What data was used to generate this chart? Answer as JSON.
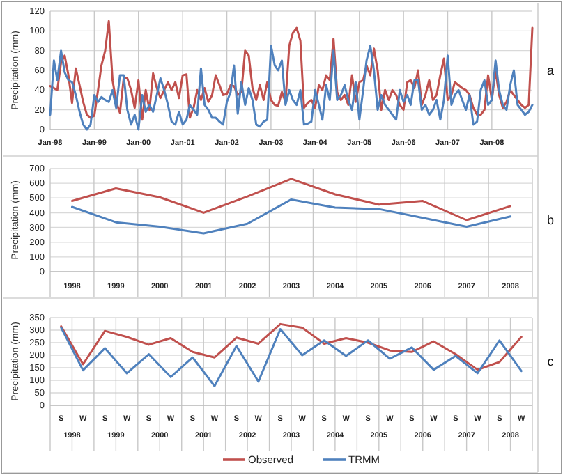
{
  "chart_data": [
    {
      "type": "line",
      "ylabel": "Precipitation (mm)",
      "annotations": [
        "a"
      ],
      "grid": true,
      "x": [
        "1998-01",
        "1998-02",
        "1998-03",
        "1998-04",
        "1998-05",
        "1998-06",
        "1998-07",
        "1998-08",
        "1998-09",
        "1998-10",
        "1998-11",
        "1998-12",
        "1999-01",
        "1999-02",
        "1999-03",
        "1999-04",
        "1999-05",
        "1999-06",
        "1999-07",
        "1999-08",
        "1999-09",
        "1999-10",
        "1999-11",
        "1999-12",
        "2000-01",
        "2000-02",
        "2000-03",
        "2000-04",
        "2000-05",
        "2000-06",
        "2000-07",
        "2000-08",
        "2000-09",
        "2000-10",
        "2000-11",
        "2000-12",
        "2001-01",
        "2001-02",
        "2001-03",
        "2001-04",
        "2001-05",
        "2001-06",
        "2001-07",
        "2001-08",
        "2001-09",
        "2001-10",
        "2001-11",
        "2001-12",
        "2002-01",
        "2002-02",
        "2002-03",
        "2002-04",
        "2002-05",
        "2002-06",
        "2002-07",
        "2002-08",
        "2002-09",
        "2002-10",
        "2002-11",
        "2002-12",
        "2003-01",
        "2003-02",
        "2003-03",
        "2003-04",
        "2003-05",
        "2003-06",
        "2003-07",
        "2003-08",
        "2003-09",
        "2003-10",
        "2003-11",
        "2003-12",
        "2004-01",
        "2004-02",
        "2004-03",
        "2004-04",
        "2004-05",
        "2004-06",
        "2004-07",
        "2004-08",
        "2004-09",
        "2004-10",
        "2004-11",
        "2004-12",
        "2005-01",
        "2005-02",
        "2005-03",
        "2005-04",
        "2005-05",
        "2005-06",
        "2005-07",
        "2005-08",
        "2005-09",
        "2005-10",
        "2005-11",
        "2005-12",
        "2006-01",
        "2006-02",
        "2006-03",
        "2006-04",
        "2006-05",
        "2006-06",
        "2006-07",
        "2006-08",
        "2006-09",
        "2006-10",
        "2006-11",
        "2006-12",
        "2007-01",
        "2007-02",
        "2007-03",
        "2007-04",
        "2007-05",
        "2007-06",
        "2007-07",
        "2007-08",
        "2007-09",
        "2007-10",
        "2007-11",
        "2007-12",
        "2008-01",
        "2008-02",
        "2008-03",
        "2008-04",
        "2008-05",
        "2008-06",
        "2008-07",
        "2008-08",
        "2008-09",
        "2008-10",
        "2008-11",
        "2008-12"
      ],
      "xlim": [
        "1998-01",
        "2008-12"
      ],
      "xticks": [
        {
          "value": "1998-01",
          "label": "Jan-98"
        },
        {
          "value": "1999-01",
          "label": "Jan-99"
        },
        {
          "value": "2000-01",
          "label": "Jan-00"
        },
        {
          "value": "2001-01",
          "label": "Jan-01"
        },
        {
          "value": "2002-01",
          "label": "Jan-02"
        },
        {
          "value": "2003-01",
          "label": "Jan-03"
        },
        {
          "value": "2004-01",
          "label": "Jan-04"
        },
        {
          "value": "2005-01",
          "label": "Jan-05"
        },
        {
          "value": "2006-01",
          "label": "Jan-06"
        },
        {
          "value": "2007-01",
          "label": "Jan-07"
        },
        {
          "value": "2008-01",
          "label": "Jan-08"
        }
      ],
      "ylim": [
        0,
        120
      ],
      "yticks": [
        0,
        20,
        40,
        60,
        80,
        100,
        120
      ],
      "series": [
        {
          "color": "#c0504d",
          "values": [
            44,
            42,
            40,
            68,
            75,
            55,
            27,
            62,
            45,
            28,
            15,
            12,
            14,
            40,
            65,
            80,
            110,
            50,
            28,
            17,
            52,
            52,
            40,
            22,
            50,
            10,
            40,
            20,
            57,
            42,
            32,
            40,
            48,
            40,
            48,
            32,
            55,
            56,
            12,
            22,
            40,
            30,
            42,
            28,
            35,
            55,
            45,
            35,
            36,
            45,
            44,
            35,
            38,
            80,
            75,
            42,
            30,
            45,
            30,
            48,
            30,
            25,
            24,
            38,
            28,
            85,
            98,
            103,
            90,
            22,
            27,
            30,
            22,
            45,
            40,
            55,
            50,
            92,
            38,
            30,
            35,
            25,
            55,
            28,
            48,
            50,
            65,
            55,
            82,
            60,
            20,
            40,
            30,
            40,
            35,
            25,
            20,
            48,
            50,
            42,
            60,
            25,
            35,
            50,
            30,
            35,
            55,
            72,
            30,
            35,
            48,
            45,
            42,
            40,
            35,
            22,
            15,
            15,
            20,
            55,
            30,
            60,
            35,
            22,
            28,
            40,
            35,
            30,
            25,
            22,
            25,
            103
          ]
        },
        {
          "color": "#4f81bd",
          "values": [
            15,
            70,
            50,
            80,
            58,
            50,
            48,
            35,
            18,
            5,
            0,
            5,
            35,
            28,
            33,
            30,
            28,
            40,
            22,
            55,
            55,
            20,
            5,
            15,
            0,
            35,
            18,
            25,
            18,
            35,
            52,
            40,
            25,
            8,
            5,
            18,
            5,
            10,
            25,
            20,
            15,
            62,
            25,
            20,
            12,
            12,
            8,
            5,
            28,
            38,
            65,
            16,
            48,
            25,
            42,
            30,
            5,
            3,
            8,
            10,
            85,
            65,
            60,
            70,
            25,
            40,
            30,
            25,
            40,
            5,
            6,
            8,
            40,
            25,
            10,
            45,
            30,
            80,
            30,
            35,
            45,
            30,
            20,
            48,
            10,
            40,
            70,
            85,
            60,
            20,
            35,
            25,
            20,
            15,
            10,
            40,
            28,
            35,
            25,
            50,
            50,
            20,
            25,
            15,
            20,
            30,
            10,
            30,
            75,
            25,
            35,
            40,
            30,
            20,
            35,
            5,
            8,
            40,
            50,
            25,
            30,
            70,
            40,
            25,
            20,
            45,
            60,
            25,
            20,
            15,
            18,
            25
          ]
        }
      ]
    },
    {
      "type": "line",
      "ylabel": "Precipitation (mm)",
      "annotations": [
        "b"
      ],
      "grid": true,
      "categories": [
        "1998",
        "1999",
        "2000",
        "2001",
        "2002",
        "2003",
        "2004",
        "2005",
        "2006",
        "2007",
        "2008"
      ],
      "ylim": [
        0,
        700
      ],
      "yticks": [
        0,
        100,
        200,
        300,
        400,
        500,
        600,
        700
      ],
      "series": [
        {
          "color": "#c0504d",
          "values": [
            480,
            565,
            505,
            400,
            510,
            630,
            525,
            455,
            480,
            350,
            445
          ]
        },
        {
          "color": "#4f81bd",
          "values": [
            440,
            335,
            305,
            260,
            325,
            490,
            435,
            425,
            365,
            305,
            375
          ]
        }
      ]
    },
    {
      "type": "line",
      "ylabel": "Precipitation (mm)",
      "annotations": [
        "c",
        "1998",
        "1999",
        "2000",
        "2001",
        "2002",
        "2003",
        "2004",
        "2005",
        "2006",
        "2007",
        "2008"
      ],
      "grid": true,
      "legend": "bottom",
      "categories": [
        "S",
        "W",
        "S",
        "W",
        "S",
        "W",
        "S",
        "W",
        "S",
        "W",
        "S",
        "W",
        "S",
        "W",
        "S",
        "W",
        "S",
        "W",
        "S",
        "W",
        "S",
        "W"
      ],
      "ylim": [
        0,
        350
      ],
      "yticks": [
        0,
        50,
        100,
        150,
        200,
        250,
        300,
        350
      ],
      "series": [
        {
          "name": "Observed",
          "color": "#c0504d",
          "values": [
            315,
            164,
            297,
            273,
            242,
            268,
            213,
            191,
            270,
            246,
            324,
            310,
            246,
            268,
            250,
            219,
            213,
            255,
            204,
            142,
            173,
            273
          ]
        },
        {
          "name": "TRMM",
          "color": "#4f81bd",
          "values": [
            310,
            140,
            228,
            128,
            204,
            113,
            191,
            77,
            237,
            95,
            304,
            200,
            259,
            197,
            259,
            186,
            231,
            142,
            197,
            128,
            259,
            137
          ]
        }
      ]
    }
  ]
}
